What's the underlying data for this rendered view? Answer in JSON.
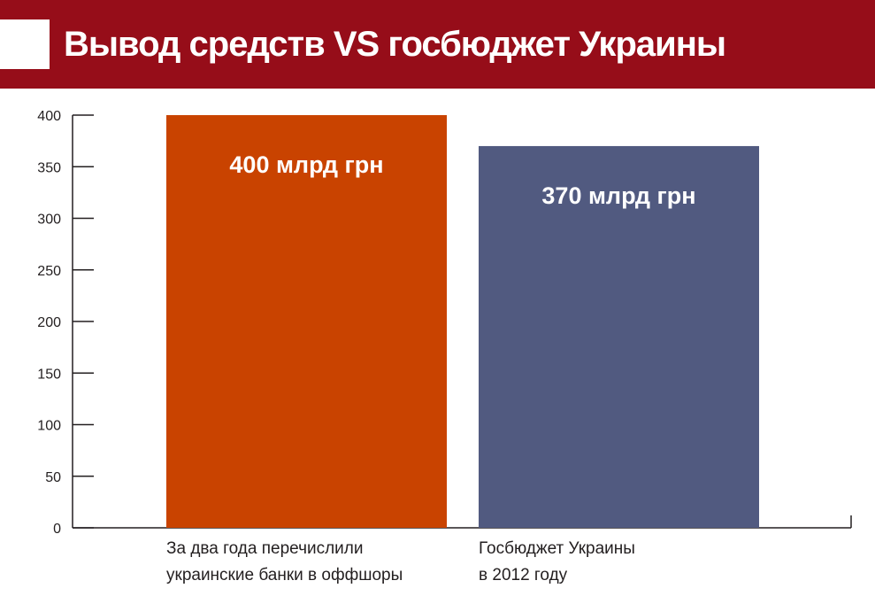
{
  "header": {
    "title": "Вывод средств VS госбюджет Украины",
    "color": "#960d19"
  },
  "chart_data": {
    "type": "bar",
    "title": "Вывод средств VS госбюджет Украины",
    "xlabel": "",
    "ylabel": "",
    "ylim": [
      0,
      400
    ],
    "yticks": [
      0,
      50,
      100,
      150,
      200,
      250,
      300,
      350,
      400
    ],
    "grid": false,
    "categories": [
      [
        "За два года перечислили",
        "украинские банки в оффшоры"
      ],
      [
        "Госбюджет Украины",
        "в 2012 году"
      ]
    ],
    "values": [
      400,
      370
    ],
    "data_labels": [
      "400 млрд грн",
      "370 млрд грн"
    ],
    "colors": [
      "#c94300",
      "#515a80"
    ]
  }
}
